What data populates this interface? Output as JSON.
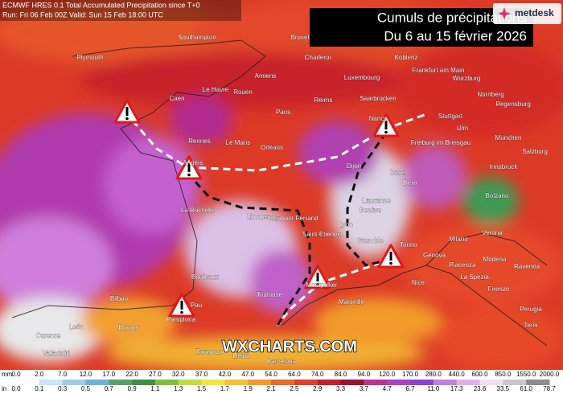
{
  "header": {
    "model_line": "ECMWF HRES 0.1 Total Accumulated Precipitation since T+0",
    "run_line": "Run: Fri 06 Feb 00Z Valid: Sun 15 Feb 18:00 UTC"
  },
  "title_box": {
    "title": "Cumuls de précipitations",
    "subtitle": "Du 6 au 15 février 2026"
  },
  "logo": {
    "text": "metdesk"
  },
  "watermark": "WXCHARTS.COM",
  "cities": [
    "Southampton",
    "Plymouth",
    "Bruxelles",
    "Charleroi",
    "Koblenz",
    "Frankfurt am Main",
    "Würzburg",
    "Amiens",
    "Luxembourg",
    "Saarbrücken",
    "Le Havre",
    "Rouen",
    "Caen",
    "Paris",
    "Reims",
    "Nancy",
    "Stuttgart",
    "Nürnberg",
    "Regensburg",
    "Rennes",
    "Le Mans",
    "Orléans",
    "Angers",
    "Freiburg im Breisgau",
    "Ulm",
    "München",
    "Salzburg",
    "Dijon",
    "Basel",
    "Bern",
    "Innsbruck",
    "Lausanne",
    "Genève",
    "Bolzano",
    "La Rochelle",
    "Limoges",
    "Clermont-Ferrand",
    "Lyon",
    "Saint-Étienne",
    "Grenoble",
    "Torino",
    "Milano",
    "Verona",
    "Piacenza",
    "Bordeaux",
    "Modena",
    "Ravenna",
    "Genova",
    "La Spezia",
    "Firenze",
    "Pau",
    "Toulouse",
    "Montpellier",
    "Marseille",
    "Nice",
    "Perugia",
    "Burgos",
    "Pamplona",
    "Bilbao",
    "León",
    "Ourense",
    "Valladolid",
    "Zaragoza",
    "Lleida",
    "Barcelona",
    "Terni"
  ],
  "legend": {
    "mm_unit": "mm",
    "mm_labels": [
      "0.0",
      "2.0",
      "7.0",
      "12.0",
      "17.0",
      "22.0",
      "27.0",
      "32.0",
      "37.0",
      "42.0",
      "47.0",
      "54.0",
      "64.0",
      "74.0",
      "84.0",
      "94.0",
      "120.0",
      "170.0",
      "280.0",
      "440.0",
      "600.0",
      "850.0",
      "1550.0",
      "2000.0"
    ],
    "in_unit": "in",
    "in_labels": [
      "0.0",
      "0.1",
      "0.3",
      "0.5",
      "0.7",
      "0.9",
      "1.1",
      "1.3",
      "1.5",
      "1.7",
      "1.9",
      "2.1",
      "2.5",
      "2.9",
      "3.3",
      "3.7",
      "4.7",
      "6.7",
      "11.0",
      "17.3",
      "23.6",
      "33.5",
      "61.0",
      "78.7"
    ],
    "colors": [
      "#ffffff",
      "#c8e6f5",
      "#9ccce8",
      "#6fb0d8",
      "#5a9f6a",
      "#3f8f3f",
      "#7fbf3f",
      "#bfdf3f",
      "#f2e640",
      "#f5c230",
      "#f29a2a",
      "#ec6a28",
      "#e0402a",
      "#c81e28",
      "#a01030",
      "#c03090",
      "#b040c0",
      "#9040d0",
      "#c080e0",
      "#e0b0ec",
      "#f0e0f4",
      "#c8c8c8",
      "#8c8c8c"
    ]
  }
}
